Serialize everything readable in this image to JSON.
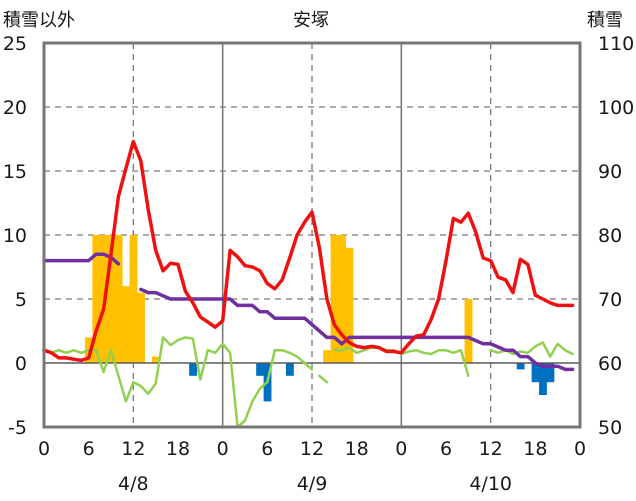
{
  "chart_data": {
    "type": "mixed-bar-line",
    "title": "安塚",
    "left_axis_label": "積雪以外",
    "right_axis_label": "積雪",
    "left_ylim": [
      -5,
      25
    ],
    "left_ticks": [
      "-5",
      "0",
      "5",
      "10",
      "15",
      "20",
      "25"
    ],
    "right_ylim": [
      50,
      110
    ],
    "right_ticks": [
      "50",
      "60",
      "70",
      "80",
      "90",
      "100",
      "110"
    ],
    "x_hour_range": [
      0,
      72
    ],
    "x_tick_labels": [
      "0",
      "6",
      "12",
      "18",
      "0",
      "6",
      "12",
      "18",
      "0",
      "6",
      "12",
      "18",
      "0"
    ],
    "date_labels": [
      {
        "label": "4/8",
        "hour": 12
      },
      {
        "label": "4/9",
        "hour": 36
      },
      {
        "label": "4/10",
        "hour": 60
      }
    ],
    "day_boundaries": [
      24,
      48
    ],
    "noon_lines": [
      12,
      36,
      60
    ],
    "gridlines": [
      5,
      10,
      15,
      20
    ],
    "colors": {
      "temperature": "#ee1111",
      "snow_depth": "#7030a0",
      "green_line": "#92d050",
      "orange_bars": "#ffc000",
      "blue_bars": "#0070c0"
    },
    "orange_bars": [
      {
        "h": 6,
        "v": 2
      },
      {
        "h": 7,
        "v": 10
      },
      {
        "h": 8,
        "v": 10
      },
      {
        "h": 9,
        "v": 10
      },
      {
        "h": 10,
        "v": 10
      },
      {
        "h": 11,
        "v": 6
      },
      {
        "h": 12,
        "v": 10
      },
      {
        "h": 13,
        "v": 5.5
      },
      {
        "h": 15,
        "v": 0.5
      },
      {
        "h": 38,
        "v": 1
      },
      {
        "h": 39,
        "v": 10
      },
      {
        "h": 40,
        "v": 10
      },
      {
        "h": 41,
        "v": 9
      },
      {
        "h": 57,
        "v": 5
      }
    ],
    "blue_bars": [
      {
        "h": 20,
        "v": -1
      },
      {
        "h": 29,
        "v": -1
      },
      {
        "h": 30,
        "v": -3
      },
      {
        "h": 33,
        "v": -1
      },
      {
        "h": 64,
        "v": -0.5
      },
      {
        "h": 66,
        "v": -1.5
      },
      {
        "h": 67,
        "v": -2.5
      },
      {
        "h": 68,
        "v": -1.5
      }
    ],
    "temperature": {
      "x": [
        0,
        1,
        2,
        3,
        4,
        5,
        6,
        7,
        8,
        9,
        10,
        11,
        12,
        13,
        14,
        15,
        16,
        17,
        18,
        19,
        20,
        21,
        22,
        23,
        24,
        25,
        26,
        27,
        28,
        29,
        30,
        31,
        32,
        33,
        34,
        35,
        36,
        37,
        38,
        39,
        40,
        41,
        42,
        43,
        44,
        45,
        46,
        47,
        48,
        49,
        50,
        51,
        52,
        53,
        54,
        55,
        56,
        57,
        58,
        59,
        60,
        61,
        62,
        63,
        64,
        65,
        66,
        67,
        68,
        69,
        70,
        71
      ],
      "y": [
        1,
        0.8,
        0.4,
        0.4,
        0.3,
        0.2,
        0.4,
        2.5,
        4.2,
        8.5,
        13,
        15.2,
        17.3,
        15.8,
        12,
        8.8,
        7.2,
        7.8,
        7.7,
        5.6,
        4.7,
        3.6,
        3.2,
        2.8,
        3.3,
        8.8,
        8.3,
        7.6,
        7.5,
        7.2,
        6.2,
        5.8,
        6.5,
        8.2,
        10,
        11,
        11.8,
        9,
        5,
        3,
        2.2,
        1.6,
        1.3,
        1.2,
        1.3,
        1.2,
        0.9,
        0.9,
        0.8,
        1.5,
        2.1,
        2.2,
        3.4,
        5,
        8,
        11.3,
        11,
        11.7,
        10.2,
        8.2,
        8,
        6.7,
        6.5,
        5.5,
        8.1,
        7.7,
        5.3,
        5,
        4.7,
        4.5,
        4.5,
        4.5
      ]
    },
    "snow_depth": {
      "segments": [
        {
          "x": [
            0,
            1,
            2,
            3,
            4,
            5,
            6,
            7,
            8,
            9,
            10
          ],
          "y": [
            76,
            76,
            76,
            76,
            76,
            76,
            76,
            77,
            77,
            76.5,
            75.5
          ]
        },
        {
          "x": [
            13,
            14,
            15,
            16,
            17,
            18,
            19,
            20,
            21,
            22,
            23,
            24,
            25,
            26,
            27,
            28,
            29,
            30,
            31,
            32,
            33,
            34,
            35,
            36,
            37,
            38,
            39,
            40,
            41,
            42,
            43,
            44,
            45,
            46,
            47,
            48,
            49,
            50,
            51,
            52,
            53,
            54,
            55,
            56,
            57,
            58,
            59,
            60,
            61,
            62,
            63,
            64,
            65,
            66,
            67,
            68,
            69,
            70,
            71
          ],
          "y": [
            71.5,
            71,
            71,
            70.5,
            70,
            70,
            70,
            70,
            70,
            70,
            70,
            70,
            70,
            69,
            69,
            69,
            68,
            68,
            67,
            67,
            67,
            67,
            67,
            66,
            65,
            64,
            64,
            63,
            64,
            64,
            64,
            64,
            64,
            64,
            64,
            64,
            64,
            64,
            64,
            64,
            64,
            64,
            64,
            64,
            64,
            63.5,
            63,
            63,
            62.5,
            62,
            62,
            61,
            61,
            60,
            59.5,
            59.5,
            59.5,
            59,
            59
          ]
        }
      ]
    },
    "green_line": {
      "segments": [
        {
          "x": [
            0,
            1,
            2,
            3,
            4,
            5,
            6,
            7,
            8,
            9,
            10,
            11,
            12,
            13,
            14,
            15,
            16,
            17,
            18,
            19,
            20,
            21,
            22,
            23,
            24,
            25,
            26,
            27,
            28,
            29,
            30,
            31,
            32,
            33,
            34,
            35,
            36
          ],
          "y": [
            1,
            0.8,
            1,
            0.8,
            1,
            0.8,
            1,
            1,
            -0.7,
            1,
            -1,
            -3,
            -1.5,
            -1.8,
            -2.4,
            -1.6,
            2,
            1.4,
            1.8,
            2,
            1.9,
            -1.3,
            1,
            0.8,
            1.5,
            0.8,
            -5,
            -4.5,
            -3,
            -2,
            -1.5,
            1,
            1,
            0.8,
            0.5,
            0,
            -0.5
          ]
        },
        {
          "x": [
            37,
            38
          ],
          "y": [
            -1,
            -1.5
          ]
        },
        {
          "x": [
            39,
            40,
            41,
            42,
            43,
            44,
            45,
            46,
            47,
            48,
            49,
            50,
            51,
            52,
            53,
            54,
            55,
            56,
            57
          ],
          "y": [
            1,
            1,
            1.2,
            0.8,
            1,
            1.2,
            1.2,
            1,
            1,
            0.7,
            0.9,
            1,
            0.8,
            0.7,
            1,
            1,
            0.8,
            1,
            -1
          ]
        },
        {
          "x": [
            60,
            61,
            62,
            63,
            64,
            65,
            66,
            67,
            68,
            69,
            70,
            71
          ],
          "y": [
            1,
            0.8,
            1,
            0.7,
            0.9,
            0.8,
            1.3,
            1.6,
            0.5,
            1.5,
            1,
            0.7
          ]
        }
      ]
    }
  }
}
